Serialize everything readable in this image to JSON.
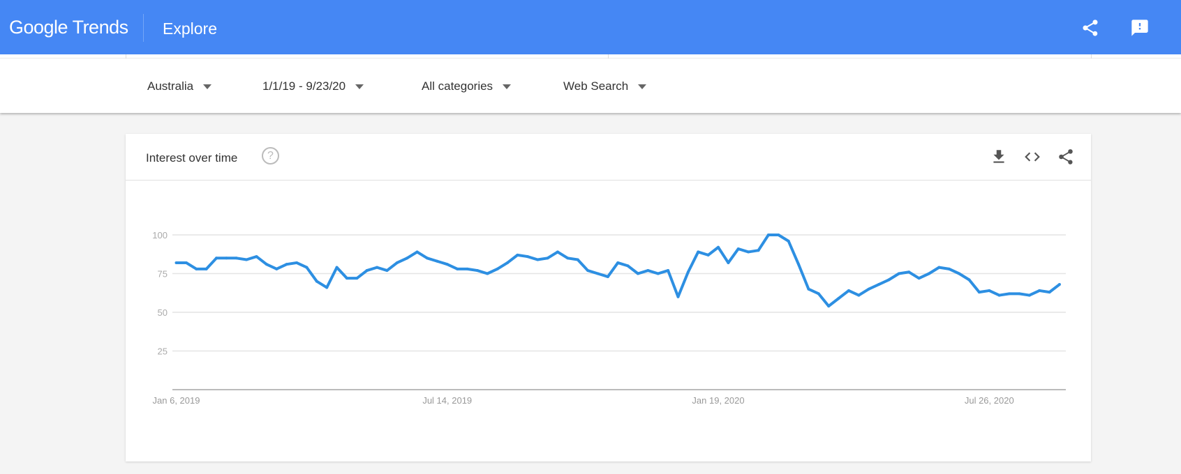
{
  "header": {
    "logo": "Google Trends",
    "title": "Explore",
    "share_icon": "share-icon",
    "feedback_icon": "feedback-icon",
    "color": "#4587f4"
  },
  "filters": {
    "region": "Australia",
    "date_range": "1/1/19 - 9/23/20",
    "category": "All categories",
    "search_type": "Web Search"
  },
  "card": {
    "title": "Interest over time",
    "help_icon": "?",
    "download_icon": "download-icon",
    "embed_icon": "embed-icon",
    "share_icon": "share-icon"
  },
  "chart_data": {
    "type": "line",
    "line_color": "#2d8fe2",
    "grid": true,
    "ylim": [
      0,
      100
    ],
    "yticks": [
      25,
      50,
      75,
      100
    ],
    "xtick_labels": [
      {
        "date": "2019-01-06",
        "label": "Jan 6, 2019"
      },
      {
        "date": "2019-07-14",
        "label": "Jul 14, 2019"
      },
      {
        "date": "2020-01-19",
        "label": "Jan 19, 2020"
      },
      {
        "date": "2020-07-26",
        "label": "Jul 26, 2020"
      }
    ],
    "x": [
      "2019-01-06",
      "2019-01-13",
      "2019-01-20",
      "2019-01-27",
      "2019-02-03",
      "2019-02-10",
      "2019-02-17",
      "2019-02-24",
      "2019-03-03",
      "2019-03-10",
      "2019-03-17",
      "2019-03-24",
      "2019-03-31",
      "2019-04-07",
      "2019-04-14",
      "2019-04-21",
      "2019-04-28",
      "2019-05-05",
      "2019-05-12",
      "2019-05-19",
      "2019-05-26",
      "2019-06-02",
      "2019-06-09",
      "2019-06-16",
      "2019-06-23",
      "2019-06-30",
      "2019-07-07",
      "2019-07-14",
      "2019-07-21",
      "2019-07-28",
      "2019-08-04",
      "2019-08-11",
      "2019-08-18",
      "2019-08-25",
      "2019-09-01",
      "2019-09-08",
      "2019-09-15",
      "2019-09-22",
      "2019-09-29",
      "2019-10-06",
      "2019-10-13",
      "2019-10-20",
      "2019-10-27",
      "2019-11-03",
      "2019-11-10",
      "2019-11-17",
      "2019-11-24",
      "2019-12-01",
      "2019-12-08",
      "2019-12-15",
      "2019-12-22",
      "2019-12-29",
      "2020-01-05",
      "2020-01-12",
      "2020-01-19",
      "2020-01-26",
      "2020-02-02",
      "2020-02-09",
      "2020-02-16",
      "2020-02-23",
      "2020-03-01",
      "2020-03-08",
      "2020-03-15",
      "2020-03-22",
      "2020-03-29",
      "2020-04-05",
      "2020-04-12",
      "2020-04-19",
      "2020-04-26",
      "2020-05-03",
      "2020-05-10",
      "2020-05-17",
      "2020-05-24",
      "2020-05-31",
      "2020-06-07",
      "2020-06-14",
      "2020-06-21",
      "2020-06-28",
      "2020-07-05",
      "2020-07-12",
      "2020-07-19",
      "2020-07-26",
      "2020-08-02",
      "2020-08-09",
      "2020-08-16",
      "2020-08-23",
      "2020-08-30",
      "2020-09-06",
      "2020-09-13"
    ],
    "values": [
      82,
      82,
      78,
      78,
      85,
      85,
      85,
      84,
      86,
      81,
      78,
      81,
      82,
      79,
      70,
      66,
      79,
      72,
      72,
      77,
      79,
      77,
      82,
      85,
      89,
      85,
      83,
      81,
      78,
      78,
      77,
      75,
      78,
      82,
      87,
      86,
      84,
      85,
      89,
      85,
      84,
      77,
      75,
      73,
      82,
      80,
      75,
      77,
      75,
      77,
      60,
      76,
      89,
      87,
      92,
      82,
      91,
      89,
      90,
      100,
      100,
      96,
      81,
      65,
      62,
      54,
      59,
      64,
      61,
      65,
      68,
      71,
      75,
      76,
      72,
      75,
      79,
      78,
      75,
      71,
      63,
      64,
      61,
      62,
      62,
      61,
      64,
      63,
      68
    ]
  }
}
